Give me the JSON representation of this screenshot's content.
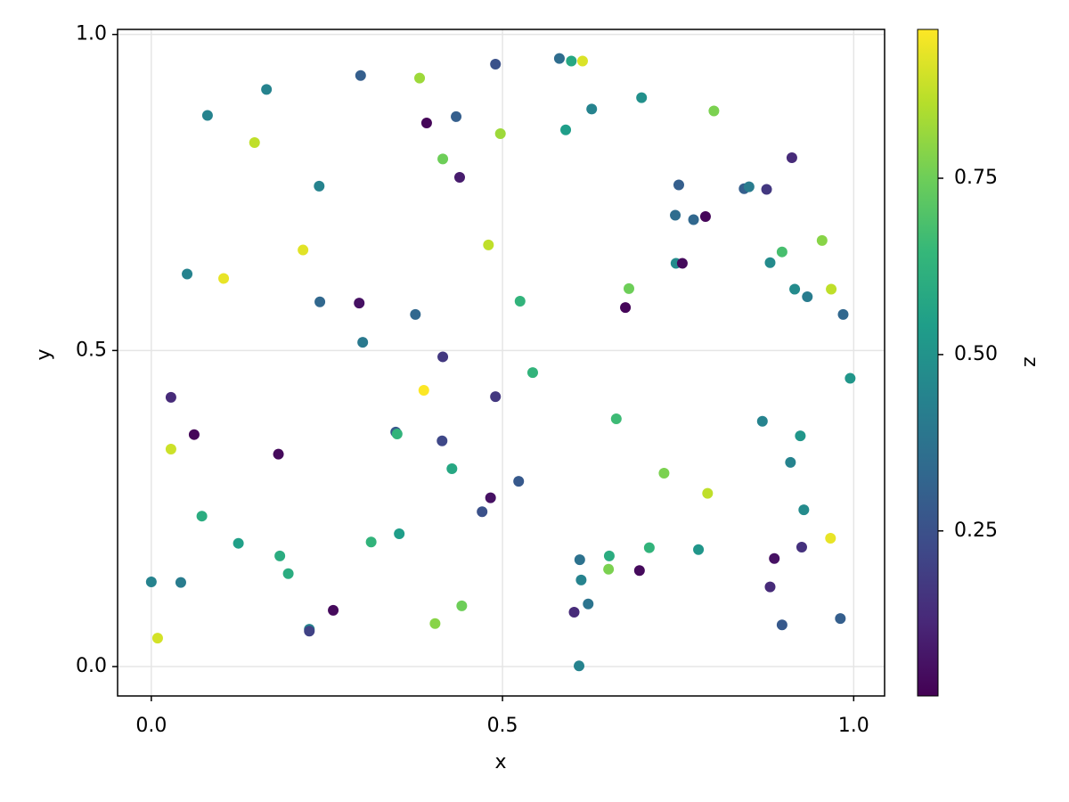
{
  "chart_data": {
    "type": "scatter",
    "xlabel": "x",
    "ylabel": "y",
    "colorbar_label": "z",
    "colormap": "viridis",
    "grid": true,
    "xlim": [
      -0.048,
      1.044
    ],
    "ylim": [
      -0.0465,
      1.008
    ],
    "zlim": [
      0.016,
      0.961
    ],
    "xticks": [
      {
        "value": 0,
        "label": "0.0"
      },
      0.5,
      {
        "value": 1,
        "label": "1.0"
      }
    ],
    "yticks": [
      {
        "value": 0,
        "label": "0.0"
      },
      0.5,
      {
        "value": 1,
        "label": "1.0"
      }
    ],
    "zticks": [
      0.25,
      {
        "value": 0.5,
        "label": "0.50"
      },
      0.75
    ],
    "x": [
      0.0,
      0.009,
      0.028,
      0.028,
      0.042,
      0.051,
      0.061,
      0.072,
      0.08,
      0.103,
      0.124,
      0.147,
      0.164,
      0.181,
      0.183,
      0.195,
      0.216,
      0.225,
      0.225,
      0.239,
      0.24,
      0.259,
      0.296,
      0.298,
      0.301,
      0.313,
      0.348,
      0.35,
      0.353,
      0.376,
      0.382,
      0.388,
      0.392,
      0.404,
      0.415,
      0.414,
      0.415,
      0.428,
      0.434,
      0.439,
      0.442,
      0.471,
      0.48,
      0.483,
      0.49,
      0.49,
      0.497,
      0.523,
      0.525,
      0.543,
      0.581,
      0.59,
      0.598,
      0.602,
      0.609,
      0.61,
      0.612,
      0.614,
      0.622,
      0.627,
      0.651,
      0.652,
      0.662,
      0.675,
      0.68,
      0.695,
      0.698,
      0.709,
      0.73,
      0.746,
      0.747,
      0.751,
      0.756,
      0.772,
      0.779,
      0.789,
      0.792,
      0.801,
      0.844,
      0.851,
      0.87,
      0.876,
      0.881,
      0.881,
      0.887,
      0.898,
      0.898,
      0.91,
      0.912,
      0.916,
      0.924,
      0.926,
      0.929,
      0.934,
      0.955,
      0.967,
      0.968,
      0.981,
      0.985,
      0.995
    ],
    "y": [
      0.134,
      0.045,
      0.426,
      0.344,
      0.133,
      0.621,
      0.367,
      0.238,
      0.872,
      0.614,
      0.195,
      0.829,
      0.913,
      0.336,
      0.175,
      0.147,
      0.659,
      0.059,
      0.056,
      0.76,
      0.577,
      0.089,
      0.575,
      0.935,
      0.513,
      0.197,
      0.371,
      0.368,
      0.21,
      0.557,
      0.931,
      0.437,
      0.86,
      0.068,
      0.803,
      0.357,
      0.49,
      0.313,
      0.87,
      0.774,
      0.096,
      0.245,
      0.667,
      0.267,
      0.953,
      0.427,
      0.843,
      0.293,
      0.578,
      0.465,
      0.962,
      0.849,
      0.958,
      0.086,
      0.001,
      0.169,
      0.137,
      0.958,
      0.099,
      0.882,
      0.154,
      0.175,
      0.392,
      0.568,
      0.598,
      0.152,
      0.9,
      0.188,
      0.306,
      0.714,
      0.638,
      0.762,
      0.638,
      0.707,
      0.185,
      0.712,
      0.274,
      0.879,
      0.756,
      0.759,
      0.388,
      0.755,
      0.639,
      0.126,
      0.171,
      0.656,
      0.066,
      0.323,
      0.805,
      0.597,
      0.365,
      0.189,
      0.248,
      0.585,
      0.674,
      0.203,
      0.597,
      0.076,
      0.557,
      0.456
    ],
    "z": [
      0.44,
      0.9,
      0.13,
      0.89,
      0.41,
      0.44,
      0.03,
      0.6,
      0.44,
      0.93,
      0.55,
      0.87,
      0.44,
      0.04,
      0.6,
      0.6,
      0.92,
      0.44,
      0.2,
      0.44,
      0.33,
      0.04,
      0.06,
      0.3,
      0.4,
      0.63,
      0.28,
      0.63,
      0.54,
      0.33,
      0.82,
      0.96,
      0.03,
      0.79,
      0.75,
      0.22,
      0.17,
      0.58,
      0.3,
      0.09,
      0.75,
      0.25,
      0.87,
      0.06,
      0.25,
      0.17,
      0.82,
      0.28,
      0.63,
      0.63,
      0.35,
      0.54,
      0.58,
      0.13,
      0.44,
      0.37,
      0.44,
      0.91,
      0.38,
      0.44,
      0.77,
      0.6,
      0.66,
      0.03,
      0.75,
      0.04,
      0.49,
      0.63,
      0.77,
      0.35,
      0.47,
      0.3,
      0.04,
      0.33,
      0.51,
      0.03,
      0.87,
      0.77,
      0.3,
      0.41,
      0.44,
      0.17,
      0.47,
      0.13,
      0.06,
      0.68,
      0.28,
      0.44,
      0.13,
      0.47,
      0.51,
      0.15,
      0.47,
      0.41,
      0.79,
      0.93,
      0.87,
      0.3,
      0.33,
      0.51
    ]
  }
}
